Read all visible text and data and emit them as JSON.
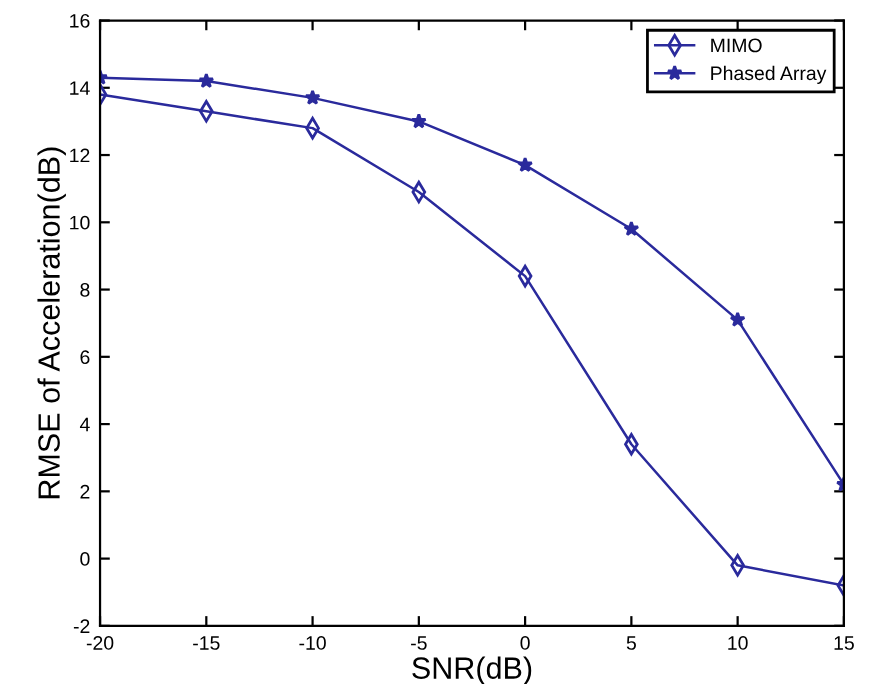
{
  "chart_data": {
    "type": "line",
    "xlabel": "SNR(dB)",
    "ylabel": "RMSE of Acceleration(dB)",
    "x": [
      -20,
      -15,
      -10,
      -5,
      0,
      5,
      10,
      15
    ],
    "xlim": [
      -20,
      15
    ],
    "xticks": [
      -20,
      -15,
      -10,
      -5,
      0,
      5,
      10,
      15
    ],
    "ylim": [
      -2,
      16
    ],
    "yticks": [
      -2,
      0,
      2,
      4,
      6,
      8,
      10,
      12,
      14,
      16
    ],
    "grid": false,
    "legend": "top right",
    "series": [
      {
        "name": "MIMO",
        "color": "#2a2a9c",
        "marker": "diamond",
        "values": [
          13.8,
          13.3,
          12.8,
          10.9,
          8.4,
          3.4,
          -0.2,
          -0.8
        ]
      },
      {
        "name": "Phased Array",
        "color": "#2a2a9c",
        "marker": "star",
        "values": [
          14.3,
          14.2,
          13.7,
          13.0,
          11.7,
          9.8,
          7.1,
          2.2
        ]
      }
    ]
  }
}
